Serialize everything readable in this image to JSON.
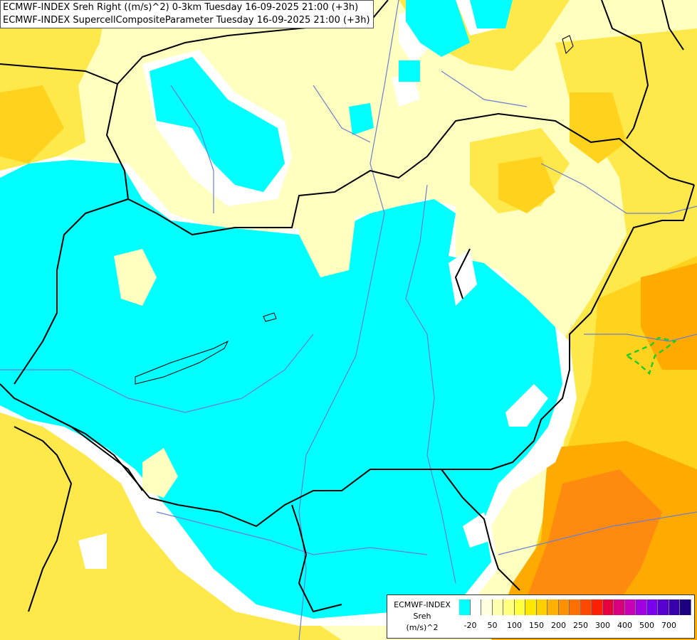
{
  "title": {
    "line1": "ECMWF-INDEX Sreh Right ((m/s)^2) 0-3km Tuesday 16-09-2025 21:00 (+3h)",
    "line2": "ECMWF-INDEX SupercellCompositeParameter Tuesday 16-09-2025 21:00 (+3h)"
  },
  "legend": {
    "line1": "ECMWF-INDEX",
    "line2": "Sreh",
    "line3": "(m/s)^2",
    "colors": [
      "#00ffff",
      "#ffffff",
      "#ffffe0",
      "#ffffb0",
      "#ffff80",
      "#ffff40",
      "#ffe800",
      "#ffd000",
      "#ffb000",
      "#ff9000",
      "#ff7000",
      "#ff4800",
      "#ff2000",
      "#e8003c",
      "#d8007c",
      "#c800b4",
      "#a000e0",
      "#7c00f0",
      "#5800d0",
      "#3800a8",
      "#1c0080"
    ],
    "ticks": [
      "-20",
      "50",
      "100",
      "150",
      "200",
      "250",
      "300",
      "400",
      "500",
      "700"
    ]
  },
  "map": {
    "shading": {
      "low": "#00ffff",
      "zero": "#ffffff",
      "pale": "#ffffc0",
      "light": "#ffff90",
      "yellow": "#ffe84a",
      "gold": "#ffd21e",
      "orange": "#ffaa00",
      "deep_orange": "#ff8a10"
    },
    "border_color": "#000000",
    "river_color": "#6a7fd0",
    "scp_contour_color": "#22cc22"
  }
}
